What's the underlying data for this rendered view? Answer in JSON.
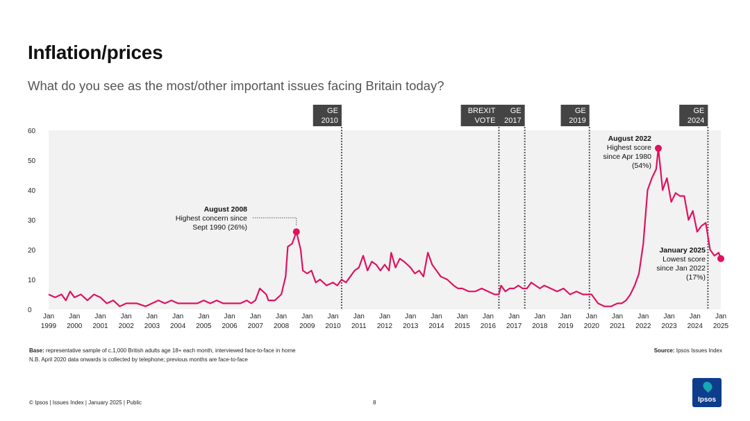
{
  "header": {
    "title": "Inflation/prices",
    "subtitle": "What do you see as the most/other important issues facing Britain today?"
  },
  "chart_data": {
    "type": "line",
    "series_color": "#e0115f",
    "ylim": [
      0,
      60
    ],
    "yticks": [
      0,
      10,
      20,
      30,
      40,
      50,
      60
    ],
    "xlim": [
      "1999-01",
      "2025-01"
    ],
    "xticks": [
      "Jan 1999",
      "Jan 2000",
      "Jan 2001",
      "Jan 2002",
      "Jan 2003",
      "Jan 2004",
      "Jan 2005",
      "Jan 2006",
      "Jan 2007",
      "Jan 2008",
      "Jan 2009",
      "Jan 2010",
      "Jan 2011",
      "Jan 2012",
      "Jan 2013",
      "Jan 2014",
      "Jan 2015",
      "Jan 2016",
      "Jan 2017",
      "Jan 2018",
      "Jan 2019",
      "Jan 2020",
      "Jan 2021",
      "Jan 2022",
      "Jan 2023",
      "Jan 2024",
      "Jan 2025"
    ],
    "events": [
      {
        "date": "2010-05",
        "lines": [
          "GE",
          "2010"
        ]
      },
      {
        "date": "2016-06",
        "lines": [
          "BREXIT",
          "VOTE"
        ]
      },
      {
        "date": "2017-06",
        "lines": [
          "GE",
          "2017"
        ]
      },
      {
        "date": "2019-12",
        "lines": [
          "GE",
          "2019"
        ]
      },
      {
        "date": "2024-07",
        "lines": [
          "GE",
          "2024"
        ]
      }
    ],
    "annotations": [
      {
        "date": "2008-08",
        "value": 26,
        "title": "August 2008",
        "lines": [
          "Highest concern since",
          "Sept 1990 (26%)"
        ]
      },
      {
        "date": "2022-08",
        "value": 54,
        "title": "August 2022",
        "lines": [
          "Highest score",
          "since Apr 1980",
          "(54%)"
        ]
      },
      {
        "date": "2025-01",
        "value": 17,
        "title": "January 2025",
        "lines": [
          "Lowest score",
          "since Jan 2022",
          "(17%)"
        ]
      }
    ],
    "points": [
      [
        "1999-01",
        5
      ],
      [
        "1999-04",
        4
      ],
      [
        "1999-07",
        5
      ],
      [
        "1999-09",
        3
      ],
      [
        "1999-11",
        6
      ],
      [
        "2000-01",
        4
      ],
      [
        "2000-04",
        5
      ],
      [
        "2000-07",
        3
      ],
      [
        "2000-10",
        5
      ],
      [
        "2001-01",
        4
      ],
      [
        "2001-04",
        2
      ],
      [
        "2001-07",
        3
      ],
      [
        "2001-10",
        1
      ],
      [
        "2002-01",
        2
      ],
      [
        "2002-06",
        2
      ],
      [
        "2002-10",
        1
      ],
      [
        "2003-01",
        2
      ],
      [
        "2003-04",
        3
      ],
      [
        "2003-07",
        2
      ],
      [
        "2003-10",
        3
      ],
      [
        "2004-01",
        2
      ],
      [
        "2004-06",
        2
      ],
      [
        "2004-10",
        2
      ],
      [
        "2005-01",
        3
      ],
      [
        "2005-04",
        2
      ],
      [
        "2005-07",
        3
      ],
      [
        "2005-10",
        2
      ],
      [
        "2006-01",
        2
      ],
      [
        "2006-06",
        2
      ],
      [
        "2006-09",
        3
      ],
      [
        "2006-11",
        2
      ],
      [
        "2007-01",
        3
      ],
      [
        "2007-03",
        7
      ],
      [
        "2007-06",
        5
      ],
      [
        "2007-07",
        3
      ],
      [
        "2007-10",
        3
      ],
      [
        "2008-01",
        5
      ],
      [
        "2008-03",
        11
      ],
      [
        "2008-04",
        21
      ],
      [
        "2008-06",
        22
      ],
      [
        "2008-08",
        26
      ],
      [
        "2008-10",
        20
      ],
      [
        "2008-11",
        13
      ],
      [
        "2009-01",
        12
      ],
      [
        "2009-03",
        13
      ],
      [
        "2009-05",
        9
      ],
      [
        "2009-07",
        10
      ],
      [
        "2009-10",
        8
      ],
      [
        "2010-01",
        9
      ],
      [
        "2010-03",
        8
      ],
      [
        "2010-05",
        10
      ],
      [
        "2010-07",
        9
      ],
      [
        "2010-09",
        11
      ],
      [
        "2010-11",
        13
      ],
      [
        "2011-01",
        14
      ],
      [
        "2011-03",
        18
      ],
      [
        "2011-05",
        13
      ],
      [
        "2011-07",
        16
      ],
      [
        "2011-09",
        15
      ],
      [
        "2011-11",
        13
      ],
      [
        "2012-01",
        15
      ],
      [
        "2012-03",
        13
      ],
      [
        "2012-04",
        19
      ],
      [
        "2012-06",
        14
      ],
      [
        "2012-08",
        17
      ],
      [
        "2012-10",
        16
      ],
      [
        "2013-01",
        14
      ],
      [
        "2013-03",
        12
      ],
      [
        "2013-05",
        13
      ],
      [
        "2013-07",
        11
      ],
      [
        "2013-09",
        19
      ],
      [
        "2013-11",
        15
      ],
      [
        "2014-01",
        13
      ],
      [
        "2014-03",
        11
      ],
      [
        "2014-06",
        10
      ],
      [
        "2014-09",
        8
      ],
      [
        "2014-11",
        7
      ],
      [
        "2015-01",
        7
      ],
      [
        "2015-04",
        6
      ],
      [
        "2015-07",
        6
      ],
      [
        "2015-10",
        7
      ],
      [
        "2016-01",
        6
      ],
      [
        "2016-04",
        5
      ],
      [
        "2016-06",
        5
      ],
      [
        "2016-07",
        8
      ],
      [
        "2016-09",
        6
      ],
      [
        "2016-11",
        7
      ],
      [
        "2017-01",
        7
      ],
      [
        "2017-03",
        8
      ],
      [
        "2017-05",
        7
      ],
      [
        "2017-07",
        7
      ],
      [
        "2017-09",
        9
      ],
      [
        "2017-11",
        8
      ],
      [
        "2018-01",
        7
      ],
      [
        "2018-03",
        8
      ],
      [
        "2018-06",
        7
      ],
      [
        "2018-09",
        6
      ],
      [
        "2018-12",
        7
      ],
      [
        "2019-03",
        5
      ],
      [
        "2019-06",
        6
      ],
      [
        "2019-09",
        5
      ],
      [
        "2019-12",
        5
      ],
      [
        "2020-01",
        5
      ],
      [
        "2020-04",
        2
      ],
      [
        "2020-07",
        1
      ],
      [
        "2020-10",
        1
      ],
      [
        "2021-01",
        2
      ],
      [
        "2021-03",
        2
      ],
      [
        "2021-05",
        3
      ],
      [
        "2021-07",
        5
      ],
      [
        "2021-09",
        8
      ],
      [
        "2021-11",
        12
      ],
      [
        "2022-01",
        22
      ],
      [
        "2022-03",
        40
      ],
      [
        "2022-05",
        44
      ],
      [
        "2022-07",
        47
      ],
      [
        "2022-08",
        54
      ],
      [
        "2022-10",
        40
      ],
      [
        "2022-12",
        44
      ],
      [
        "2023-02",
        36
      ],
      [
        "2023-04",
        39
      ],
      [
        "2023-06",
        38
      ],
      [
        "2023-08",
        38
      ],
      [
        "2023-10",
        30
      ],
      [
        "2023-12",
        33
      ],
      [
        "2024-02",
        26
      ],
      [
        "2024-04",
        28
      ],
      [
        "2024-06",
        29
      ],
      [
        "2024-08",
        20
      ],
      [
        "2024-10",
        18
      ],
      [
        "2024-12",
        19
      ],
      [
        "2025-01",
        17
      ]
    ]
  },
  "footer": {
    "base_label": "Base:",
    "base_text": " representative sample of c.1,000 British adults age 18+ each month, interviewed face-to-face in home",
    "note": "N.B. April 2020 data onwards is collected by telephone; previous months are face-to-face",
    "source_label": "Source:",
    "source_text": " Ipsos Issues Index",
    "copyright": "© Ipsos | Issues Index | January 2025 | Public",
    "page_number": "8",
    "logo_text": "Ipsos"
  }
}
